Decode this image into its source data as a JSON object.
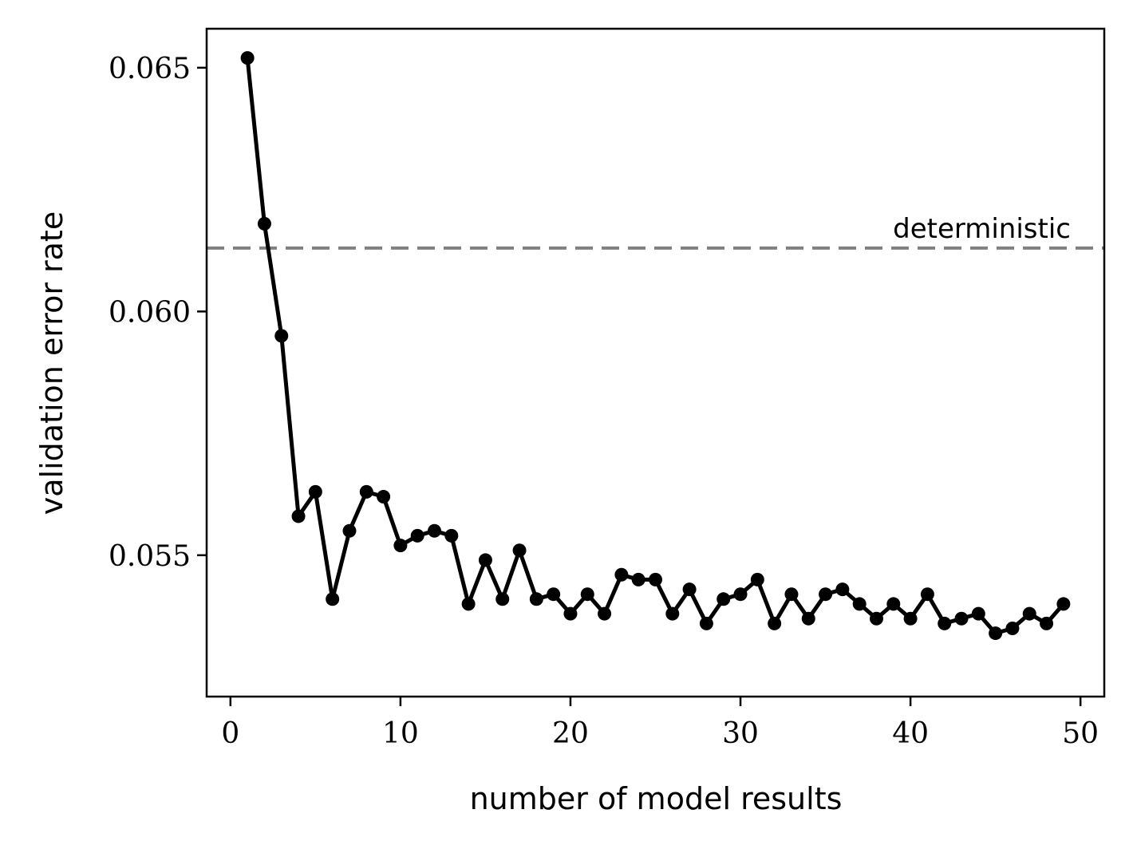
{
  "chart_data": {
    "type": "line",
    "title": "",
    "xlabel": "number of model results",
    "ylabel": "validation error rate",
    "xlim": [
      -1.4,
      51.4
    ],
    "ylim": [
      0.0521,
      0.0658
    ],
    "xticks": [
      0,
      10,
      20,
      30,
      40,
      50
    ],
    "xtick_labels": [
      "0",
      "10",
      "20",
      "30",
      "40",
      "50"
    ],
    "yticks": [
      0.055,
      0.06,
      0.065
    ],
    "ytick_labels": [
      "0.055",
      "0.060",
      "0.065"
    ],
    "grid": false,
    "series": [
      {
        "color": "#000000",
        "marker": "circle",
        "x": [
          1,
          2,
          3,
          4,
          5,
          6,
          7,
          8,
          9,
          10,
          11,
          12,
          13,
          14,
          15,
          16,
          17,
          18,
          19,
          20,
          21,
          22,
          23,
          24,
          25,
          26,
          27,
          28,
          29,
          30,
          31,
          32,
          33,
          34,
          35,
          36,
          37,
          38,
          39,
          40,
          41,
          42,
          43,
          44,
          45,
          46,
          47,
          48,
          49
        ],
        "y": [
          0.0652,
          0.0618,
          0.0595,
          0.0558,
          0.0563,
          0.0541,
          0.0555,
          0.0563,
          0.0562,
          0.0552,
          0.0554,
          0.0555,
          0.0554,
          0.054,
          0.0549,
          0.0541,
          0.0551,
          0.0541,
          0.0542,
          0.0538,
          0.0542,
          0.0538,
          0.0546,
          0.0545,
          0.0545,
          0.0538,
          0.0543,
          0.0536,
          0.0541,
          0.0542,
          0.0545,
          0.0536,
          0.0542,
          0.0537,
          0.0542,
          0.0543,
          0.054,
          0.0537,
          0.054,
          0.0537,
          0.0542,
          0.0536,
          0.0537,
          0.0538,
          0.0534,
          0.0535,
          0.0538,
          0.0536,
          0.054
        ]
      }
    ],
    "reference_line": {
      "label": "deterministic",
      "y": 0.0613,
      "style": "dashed",
      "color": "#808080"
    }
  }
}
